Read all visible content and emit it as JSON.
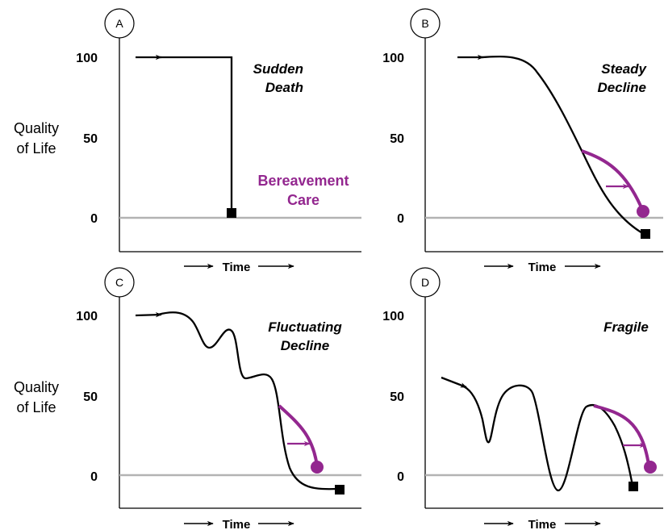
{
  "colors": {
    "curve": "#000000",
    "care": "#93278f",
    "baseline": "#b3b3b3",
    "axis": "#000000"
  },
  "y_axis_label": [
    "Quality",
    "of Life"
  ],
  "time_label": "Time",
  "care_label": [
    "Bereavement",
    "Care"
  ],
  "chart_data": [
    {
      "type": "line",
      "panel": "A",
      "title": [
        "Sudden",
        "Death"
      ],
      "xlabel": "Time",
      "ylabel": "Quality of Life",
      "yticks": [
        "100",
        "50",
        "0"
      ],
      "ylim": [
        0,
        100
      ],
      "series": [
        {
          "x": [
            0,
            1,
            1
          ],
          "y": [
            100,
            100,
            3
          ]
        }
      ]
    },
    {
      "type": "line",
      "panel": "B",
      "title": [
        "Steady",
        "Decline"
      ],
      "xlabel": "Time",
      "ylabel": "Quality of Life",
      "yticks": [
        "100",
        "50",
        "0"
      ],
      "ylim": [
        0,
        100
      ],
      "series": [
        {
          "x": [
            0,
            1
          ],
          "y": [
            100,
            -10
          ]
        }
      ]
    },
    {
      "type": "line",
      "panel": "C",
      "title": [
        "Fluctuating",
        "Decline"
      ],
      "xlabel": "Time",
      "ylabel": "Quality of Life",
      "yticks": [
        "100",
        "50",
        "0"
      ],
      "ylim": [
        0,
        100
      ],
      "series": [
        {
          "x": [
            0,
            1
          ],
          "y": [
            100,
            -9
          ]
        }
      ]
    },
    {
      "type": "line",
      "panel": "D",
      "title": [
        "Fragile"
      ],
      "xlabel": "Time",
      "ylabel": "Quality of Life",
      "yticks": [
        "50",
        "0"
      ],
      "ylim": [
        0,
        100
      ],
      "series": [
        {
          "x": [
            0,
            1
          ],
          "y": [
            60,
            -6
          ]
        }
      ]
    }
  ]
}
